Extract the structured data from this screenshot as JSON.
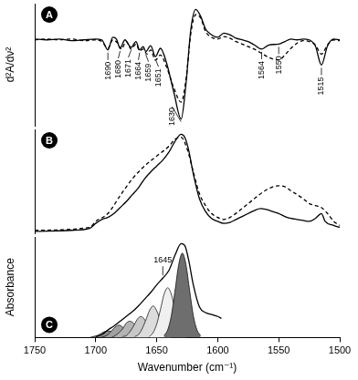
{
  "chart_data": [
    {
      "type": "line",
      "title": "A",
      "ylabel": "d²A/dν²",
      "xlim": [
        1750,
        1500
      ],
      "ylim": [
        -10,
        4.5
      ],
      "tick_labels": false,
      "grid": false,
      "series": [
        {
          "color": "#000000",
          "line_style": "solid",
          "x": [
            1750,
            1740,
            1730,
            1720,
            1710,
            1700,
            1695,
            1690,
            1686,
            1683,
            1680,
            1676,
            1671,
            1667,
            1664,
            1661,
            1659,
            1655,
            1651,
            1647,
            1642,
            1636,
            1630,
            1626,
            1622,
            1618,
            1614,
            1610,
            1605,
            1600,
            1595,
            1590,
            1585,
            1580,
            1575,
            1570,
            1564,
            1558,
            1550,
            1545,
            1540,
            1535,
            1530,
            1525,
            1520,
            1515,
            1510,
            1505,
            1500
          ],
          "values": [
            0.3,
            0.2,
            0.3,
            0.1,
            0.2,
            0.3,
            0.2,
            -1.0,
            0.5,
            0.3,
            -0.8,
            0.2,
            -0.7,
            0.0,
            -1.0,
            -0.6,
            -1.2,
            -0.5,
            -1.8,
            -0.8,
            -2.5,
            -6.0,
            -9.2,
            -5.0,
            1.5,
            3.8,
            3.0,
            1.5,
            0.8,
            0.5,
            1.0,
            0.8,
            0.4,
            0.2,
            0.0,
            -0.4,
            -0.9,
            -0.4,
            -0.3,
            0.0,
            0.3,
            0.2,
            0.3,
            0.2,
            -0.5,
            -2.8,
            -0.5,
            0.3,
            0.2
          ]
        },
        {
          "color": "#000000",
          "line_style": "dashed",
          "x": [
            1750,
            1740,
            1730,
            1720,
            1710,
            1700,
            1695,
            1690,
            1686,
            1682,
            1679,
            1675,
            1671,
            1667,
            1664,
            1661,
            1658,
            1655,
            1651,
            1647,
            1642,
            1636,
            1630,
            1626,
            1622,
            1618,
            1614,
            1610,
            1605,
            1600,
            1595,
            1590,
            1585,
            1580,
            1575,
            1570,
            1564,
            1558,
            1550,
            1545,
            1540,
            1535,
            1530,
            1525,
            1520,
            1515,
            1510,
            1505,
            1500
          ],
          "values": [
            0.2,
            0.3,
            0.2,
            0.3,
            0.1,
            0.2,
            0.0,
            -0.8,
            0.2,
            -0.2,
            -0.9,
            0.0,
            -0.9,
            -0.3,
            -1.1,
            -0.9,
            -1.5,
            -1.0,
            -2.2,
            -1.6,
            -3.0,
            -5.5,
            -7.2,
            -4.5,
            1.0,
            3.2,
            2.8,
            1.2,
            0.5,
            0.3,
            0.6,
            0.4,
            0.0,
            -0.3,
            -0.6,
            -0.9,
            -1.4,
            -1.9,
            -2.2,
            -1.6,
            -0.8,
            -0.2,
            0.1,
            0.0,
            -0.4,
            -1.5,
            -0.4,
            0.2,
            0.1
          ]
        }
      ],
      "annotations": [
        {
          "x": 1690,
          "text": "1690"
        },
        {
          "x": 1680,
          "text": "1680"
        },
        {
          "x": 1671,
          "text": "1671"
        },
        {
          "x": 1664,
          "text": "1664"
        },
        {
          "x": 1659,
          "text": "1659"
        },
        {
          "x": 1651,
          "text": "1651"
        },
        {
          "x": 1630,
          "text": "1630"
        },
        {
          "x": 1564,
          "text": "1564"
        },
        {
          "x": 1550,
          "text": "1550"
        },
        {
          "x": 1515,
          "text": "1515"
        }
      ]
    },
    {
      "type": "line",
      "title": "B",
      "xlim": [
        1750,
        1500
      ],
      "ylim": [
        0,
        1.05
      ],
      "tick_labels": false,
      "grid": false,
      "series": [
        {
          "color": "#000000",
          "line_style": "solid",
          "x": [
            1750,
            1720,
            1705,
            1700,
            1695,
            1690,
            1685,
            1680,
            1675,
            1670,
            1665,
            1660,
            1655,
            1650,
            1645,
            1640,
            1635,
            1630,
            1627,
            1624,
            1620,
            1615,
            1610,
            1605,
            1600,
            1595,
            1590,
            1585,
            1580,
            1575,
            1570,
            1565,
            1560,
            1555,
            1550,
            1545,
            1540,
            1535,
            1530,
            1525,
            1520,
            1515,
            1512,
            1505,
            1500
          ],
          "values": [
            0.02,
            0.03,
            0.05,
            0.1,
            0.14,
            0.16,
            0.2,
            0.26,
            0.32,
            0.39,
            0.46,
            0.55,
            0.62,
            0.68,
            0.74,
            0.82,
            0.93,
            1.0,
            0.97,
            0.85,
            0.6,
            0.35,
            0.22,
            0.15,
            0.12,
            0.1,
            0.11,
            0.14,
            0.17,
            0.2,
            0.23,
            0.25,
            0.24,
            0.22,
            0.2,
            0.17,
            0.15,
            0.14,
            0.13,
            0.12,
            0.15,
            0.2,
            0.12,
            0.08,
            0.06
          ]
        },
        {
          "color": "#000000",
          "line_style": "dashed",
          "x": [
            1750,
            1705,
            1700,
            1690,
            1680,
            1670,
            1660,
            1650,
            1640,
            1635,
            1630,
            1625,
            1620,
            1615,
            1610,
            1605,
            1600,
            1595,
            1590,
            1580,
            1570,
            1560,
            1550,
            1545,
            1540,
            1530,
            1525,
            1520,
            1515,
            1510,
            1505,
            1500
          ],
          "values": [
            0.03,
            0.06,
            0.12,
            0.2,
            0.38,
            0.55,
            0.68,
            0.78,
            0.88,
            0.95,
            0.97,
            0.85,
            0.62,
            0.4,
            0.28,
            0.2,
            0.16,
            0.14,
            0.16,
            0.25,
            0.35,
            0.44,
            0.48,
            0.47,
            0.43,
            0.35,
            0.3,
            0.28,
            0.26,
            0.2,
            0.12,
            0.08
          ]
        }
      ]
    },
    {
      "type": "line",
      "title": "C",
      "xlabel": "Wavenumber (cm⁻¹)",
      "ylabel": "Absorbance",
      "xlim": [
        1750,
        1500
      ],
      "xticks": [
        1750,
        1700,
        1650,
        1600,
        1550,
        1500
      ],
      "ylim": [
        0,
        1.05
      ],
      "tick_labels": "x",
      "grid": false,
      "series": [
        {
          "type": "area",
          "color": "#6e6e6e",
          "x": [
            1614,
            1617,
            1620,
            1623,
            1626,
            1629,
            1632,
            1635,
            1638,
            1641,
            1644
          ],
          "values": [
            0.02,
            0.08,
            0.23,
            0.49,
            0.76,
            0.88,
            0.76,
            0.49,
            0.23,
            0.08,
            0.02
          ]
        },
        {
          "type": "area",
          "color": "#f0f0f0",
          "x": [
            1626,
            1629,
            1632,
            1635,
            1638,
            1641,
            1644,
            1647,
            1650,
            1653,
            1656
          ],
          "values": [
            0.01,
            0.05,
            0.14,
            0.29,
            0.45,
            0.52,
            0.45,
            0.29,
            0.14,
            0.05,
            0.01
          ]
        },
        {
          "type": "area",
          "color": "#dcdcdc",
          "x": [
            1638,
            1641,
            1644,
            1647,
            1650,
            1653,
            1656,
            1659,
            1662,
            1665,
            1668
          ],
          "values": [
            0.01,
            0.03,
            0.09,
            0.18,
            0.28,
            0.33,
            0.28,
            0.18,
            0.09,
            0.03,
            0.01
          ]
        },
        {
          "type": "area",
          "color": "#c8c8c8",
          "x": [
            1648,
            1651,
            1654,
            1657,
            1660,
            1663,
            1666,
            1669,
            1672,
            1675,
            1678
          ],
          "values": [
            0.01,
            0.02,
            0.06,
            0.12,
            0.19,
            0.22,
            0.19,
            0.12,
            0.06,
            0.02,
            0.01
          ]
        },
        {
          "type": "area",
          "color": "#b4b4b4",
          "x": [
            1657,
            1660,
            1663,
            1666,
            1669,
            1672,
            1675,
            1678,
            1681,
            1684,
            1687
          ],
          "values": [
            0,
            0.02,
            0.05,
            0.09,
            0.15,
            0.17,
            0.15,
            0.09,
            0.05,
            0.02,
            0
          ]
        },
        {
          "type": "area",
          "color": "#a0a0a0",
          "x": [
            1666,
            1669,
            1672,
            1675,
            1678,
            1681,
            1684,
            1687,
            1690,
            1693,
            1696
          ],
          "values": [
            0,
            0.01,
            0.03,
            0.07,
            0.11,
            0.13,
            0.11,
            0.07,
            0.03,
            0.01,
            0
          ]
        },
        {
          "type": "area",
          "color": "#8c8c8c",
          "x": [
            1675,
            1678,
            1681,
            1684,
            1687,
            1690,
            1693,
            1696,
            1699,
            1702,
            1705
          ],
          "values": [
            0,
            0.01,
            0.02,
            0.04,
            0.06,
            0.07,
            0.06,
            0.04,
            0.02,
            0.01,
            0
          ]
        },
        {
          "type": "line",
          "color": "#000000",
          "line_style": "solid",
          "x": [
            1700,
            1695,
            1690,
            1685,
            1680,
            1675,
            1670,
            1665,
            1660,
            1655,
            1650,
            1645,
            1640,
            1635,
            1630,
            1627,
            1624,
            1620,
            1615,
            1610,
            1605,
            1600,
            1597
          ],
          "values": [
            0.01,
            0.03,
            0.08,
            0.12,
            0.17,
            0.22,
            0.27,
            0.33,
            0.4,
            0.47,
            0.55,
            0.62,
            0.7,
            0.86,
            0.98,
            0.96,
            0.82,
            0.55,
            0.32,
            0.26,
            0.24,
            0.22,
            0.2
          ]
        }
      ],
      "annotations": [
        {
          "x": 1645,
          "text": "1645"
        }
      ]
    }
  ]
}
